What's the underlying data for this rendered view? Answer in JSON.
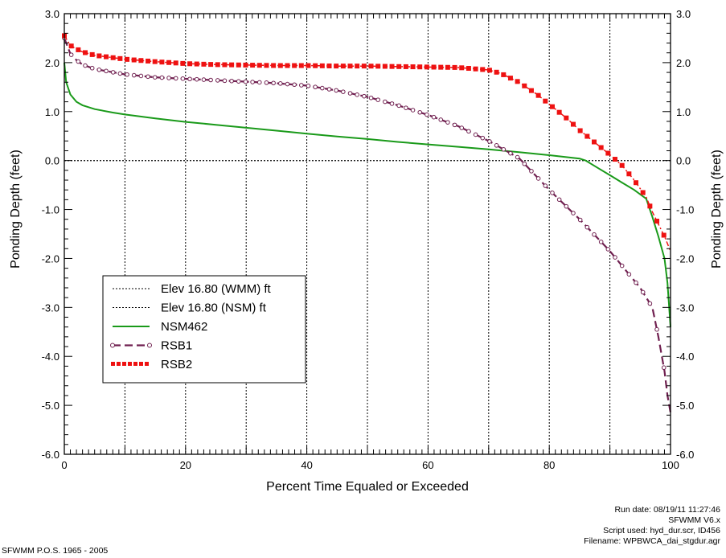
{
  "chart_data": {
    "type": "line",
    "title": "",
    "xlabel": "Percent Time Equaled or Exceeded",
    "ylabel": "Ponding Depth (feet)",
    "ylabel_right": "Ponding Depth (feet)",
    "xlim": [
      0,
      100
    ],
    "ylim": [
      -6,
      3
    ],
    "x_ticks": [
      0,
      20,
      40,
      60,
      80,
      100
    ],
    "y_ticks": [
      "3.0",
      "2.0",
      "1.0",
      "0.0",
      "-1.0",
      "-2.0",
      "-3.0",
      "-4.0",
      "-5.0",
      "-6.0"
    ],
    "grid": "vertical dotted every 10; horizontal dotted reference at 0.0",
    "legend_position": "lower-left",
    "series": [
      {
        "name": "Elev 16.80 (WMM) ft",
        "color": "#000000",
        "style": "dotted",
        "x": [
          0,
          100
        ],
        "y": [
          0,
          0
        ]
      },
      {
        "name": "Elev 16.80 (NSM) ft",
        "color": "#000000",
        "style": "dotted",
        "x": [
          0,
          100
        ],
        "y": [
          0,
          0
        ]
      },
      {
        "name": "NSM462",
        "color": "#1a9a1a",
        "style": "solid",
        "x": [
          0,
          0.3,
          1,
          2,
          3,
          5,
          8,
          10,
          15,
          20,
          25,
          30,
          35,
          40,
          45,
          50,
          55,
          60,
          65,
          70,
          75,
          80,
          85,
          86,
          88,
          90,
          92,
          94,
          96,
          97,
          98,
          99,
          99.5,
          100
        ],
        "y": [
          2.0,
          1.6,
          1.35,
          1.2,
          1.13,
          1.05,
          0.98,
          0.94,
          0.86,
          0.79,
          0.73,
          0.67,
          0.61,
          0.55,
          0.49,
          0.44,
          0.38,
          0.33,
          0.28,
          0.23,
          0.17,
          0.11,
          0.04,
          0.0,
          -0.15,
          -0.3,
          -0.45,
          -0.6,
          -0.78,
          -1.15,
          -1.55,
          -2.0,
          -2.5,
          -3.4
        ]
      },
      {
        "name": "RSB1",
        "color": "#702050",
        "style": "dashed-circle",
        "x": [
          0,
          1,
          2,
          3,
          5,
          10,
          15,
          20,
          25,
          30,
          35,
          40,
          45,
          50,
          55,
          60,
          65,
          70,
          75,
          80,
          85,
          90,
          95,
          97,
          98,
          99,
          99.5,
          100
        ],
        "y": [
          2.5,
          2.18,
          2.05,
          1.96,
          1.87,
          1.76,
          1.7,
          1.67,
          1.64,
          1.61,
          1.58,
          1.53,
          1.43,
          1.3,
          1.13,
          0.93,
          0.7,
          0.4,
          0.05,
          -0.6,
          -1.2,
          -1.85,
          -2.6,
          -3.0,
          -3.6,
          -4.3,
          -4.8,
          -5.15
        ]
      },
      {
        "name": "RSB2",
        "color": "#ee1111",
        "style": "dotdash-square",
        "x": [
          0,
          1,
          2,
          3,
          5,
          10,
          15,
          20,
          25,
          30,
          35,
          40,
          45,
          50,
          55,
          60,
          65,
          70,
          72,
          75,
          78,
          80,
          83,
          85,
          88,
          90,
          92,
          94,
          96,
          97,
          98,
          99,
          100
        ],
        "y": [
          2.55,
          2.35,
          2.28,
          2.22,
          2.15,
          2.07,
          2.02,
          1.98,
          1.96,
          1.95,
          1.94,
          1.94,
          1.93,
          1.93,
          1.92,
          1.91,
          1.9,
          1.85,
          1.78,
          1.6,
          1.35,
          1.15,
          0.85,
          0.62,
          0.32,
          0.12,
          -0.1,
          -0.4,
          -0.75,
          -1.05,
          -1.3,
          -1.55,
          -1.85
        ]
      }
    ]
  },
  "footer": {
    "period": "SFWMM P.O.S. 1965 - 2005",
    "run_date": "Run date: 08/19/11 11:27:46",
    "model": "SFWMM V6.x",
    "script": "Script used: hyd_dur.scr, ID456",
    "filename": "Filename: WPBWCA_dai_stgdur.agr"
  }
}
